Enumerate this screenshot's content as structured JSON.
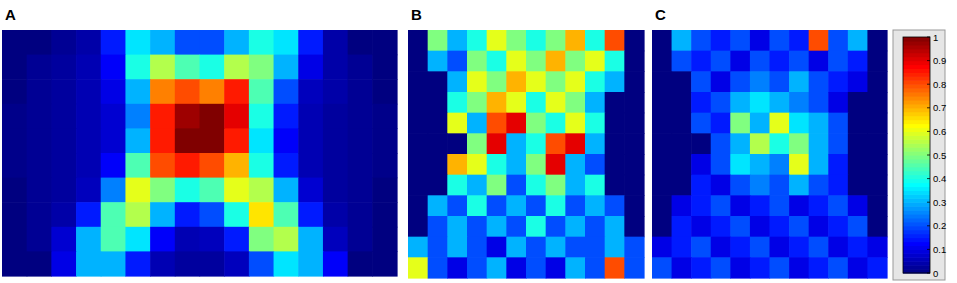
{
  "chart_data": [
    {
      "type": "heatmap",
      "title": "A",
      "color_range": [
        0,
        1
      ],
      "values": [
        [
          0,
          0,
          0.02,
          0.04,
          0.15,
          0.35,
          0.3,
          0.2,
          0.2,
          0.3,
          0.4,
          0.35,
          0.15,
          0.04,
          0,
          0
        ],
        [
          0,
          0.02,
          0.03,
          0.05,
          0.12,
          0.4,
          0.55,
          0.45,
          0.4,
          0.55,
          0.5,
          0.3,
          0.1,
          0.04,
          0.02,
          0
        ],
        [
          0,
          0.02,
          0.03,
          0.05,
          0.1,
          0.3,
          0.75,
          0.8,
          0.75,
          0.85,
          0.45,
          0.2,
          0.06,
          0.04,
          0.02,
          0
        ],
        [
          0.01,
          0.02,
          0.03,
          0.05,
          0.08,
          0.25,
          0.85,
          0.97,
          1,
          0.9,
          0.4,
          0.15,
          0.05,
          0.03,
          0.02,
          0.01
        ],
        [
          0.01,
          0.02,
          0.03,
          0.05,
          0.08,
          0.3,
          0.85,
          1,
          1,
          0.85,
          0.35,
          0.12,
          0.05,
          0.03,
          0.02,
          0.01
        ],
        [
          0.01,
          0.02,
          0.03,
          0.05,
          0.12,
          0.45,
          0.8,
          0.85,
          0.8,
          0.7,
          0.4,
          0.15,
          0.05,
          0.03,
          0.02,
          0.01
        ],
        [
          0,
          0.02,
          0.03,
          0.06,
          0.25,
          0.6,
          0.5,
          0.4,
          0.45,
          0.6,
          0.55,
          0.3,
          0.08,
          0.03,
          0.02,
          0
        ],
        [
          0,
          0.02,
          0.04,
          0.15,
          0.45,
          0.55,
          0.3,
          0.15,
          0.2,
          0.4,
          0.65,
          0.45,
          0.15,
          0.04,
          0.02,
          0
        ],
        [
          0,
          0.02,
          0.08,
          0.3,
          0.45,
          0.35,
          0.12,
          0.05,
          0.06,
          0.15,
          0.5,
          0.55,
          0.3,
          0.06,
          0.02,
          0
        ],
        [
          0,
          0,
          0.1,
          0.3,
          0.3,
          0.15,
          0.05,
          0.03,
          0.03,
          0.06,
          0.2,
          0.35,
          0.3,
          0.12,
          0,
          0
        ]
      ]
    },
    {
      "type": "heatmap",
      "title": "B",
      "color_range": [
        0,
        1
      ],
      "values": [
        [
          0,
          0.5,
          0.3,
          0.4,
          0.6,
          0.5,
          0.4,
          0.5,
          0.7,
          0.4,
          0.8,
          0
        ],
        [
          0,
          0.3,
          0.2,
          0.5,
          0.4,
          0.6,
          0.5,
          0.7,
          0.5,
          0.6,
          0.4,
          0
        ],
        [
          0,
          0,
          0.3,
          0.6,
          0.5,
          0.7,
          0.6,
          0.5,
          0.6,
          0.4,
          0.3,
          0
        ],
        [
          0,
          0,
          0.4,
          0.5,
          0.7,
          0.6,
          0.4,
          0.6,
          0.5,
          0.3,
          0,
          0
        ],
        [
          0,
          0,
          0.6,
          0.3,
          0.8,
          0.9,
          0.5,
          0.4,
          0.6,
          0.4,
          0,
          0
        ],
        [
          0,
          0,
          0,
          0.5,
          0.9,
          0.3,
          0.4,
          0.8,
          0.9,
          0.3,
          0,
          0
        ],
        [
          0,
          0,
          0.7,
          0.6,
          0.4,
          0.3,
          0.5,
          0.9,
          0.3,
          0.2,
          0,
          0
        ],
        [
          0,
          0,
          0.4,
          0.3,
          0.5,
          0.2,
          0.4,
          0.5,
          0.3,
          0.4,
          0,
          0
        ],
        [
          0,
          0.3,
          0.2,
          0.4,
          0.2,
          0.3,
          0.2,
          0.4,
          0.2,
          0.3,
          0.2,
          0
        ],
        [
          0,
          0.2,
          0.3,
          0.2,
          0.3,
          0.2,
          0.4,
          0.2,
          0.3,
          0.2,
          0.3,
          0
        ],
        [
          0.3,
          0.2,
          0.3,
          0.2,
          0.1,
          0.3,
          0.2,
          0.3,
          0.2,
          0.2,
          0.3,
          0.2
        ],
        [
          0.6,
          0.2,
          0.1,
          0.2,
          0.3,
          0.1,
          0.2,
          0.1,
          0.3,
          0.2,
          0.8,
          0.2
        ]
      ]
    },
    {
      "type": "heatmap",
      "title": "C",
      "color_range": [
        0,
        1
      ],
      "color_ticks": [
        0,
        0.1,
        0.2,
        0.3,
        0.4,
        0.5,
        0.6,
        0.7,
        0.8,
        0.9,
        1
      ],
      "values": [
        [
          0,
          0.3,
          0.2,
          0.15,
          0.2,
          0.1,
          0.2,
          0.15,
          0.8,
          0.2,
          0.3,
          0
        ],
        [
          0,
          0.2,
          0.15,
          0.2,
          0.1,
          0.2,
          0.15,
          0.2,
          0.1,
          0.2,
          0.15,
          0
        ],
        [
          0,
          0,
          0.2,
          0.1,
          0.2,
          0.25,
          0.2,
          0.3,
          0.2,
          0.15,
          0.1,
          0
        ],
        [
          0,
          0,
          0.15,
          0.2,
          0.3,
          0.35,
          0.3,
          0.25,
          0.2,
          0.1,
          0,
          0
        ],
        [
          0,
          0,
          0.2,
          0.15,
          0.5,
          0.3,
          0.6,
          0.35,
          0.3,
          0.2,
          0,
          0
        ],
        [
          0,
          0,
          0,
          0.2,
          0.3,
          0.55,
          0.4,
          0.5,
          0.3,
          0.2,
          0,
          0
        ],
        [
          0,
          0,
          0.1,
          0.2,
          0.35,
          0.3,
          0.25,
          0.6,
          0.3,
          0.15,
          0,
          0
        ],
        [
          0,
          0,
          0.15,
          0.1,
          0.2,
          0.25,
          0.2,
          0.3,
          0.2,
          0.15,
          0,
          0
        ],
        [
          0,
          0.1,
          0.15,
          0.2,
          0.1,
          0.15,
          0.2,
          0.1,
          0.15,
          0.2,
          0.1,
          0
        ],
        [
          0,
          0.15,
          0.1,
          0.15,
          0.2,
          0.1,
          0.15,
          0.2,
          0.1,
          0.15,
          0.2,
          0
        ],
        [
          0.1,
          0.15,
          0.2,
          0.1,
          0.15,
          0.2,
          0.1,
          0.15,
          0.2,
          0.1,
          0.15,
          0.1
        ],
        [
          0.2,
          0.1,
          0.15,
          0.2,
          0.1,
          0.15,
          0.2,
          0.1,
          0.15,
          0.2,
          0.1,
          0.15
        ]
      ]
    }
  ]
}
